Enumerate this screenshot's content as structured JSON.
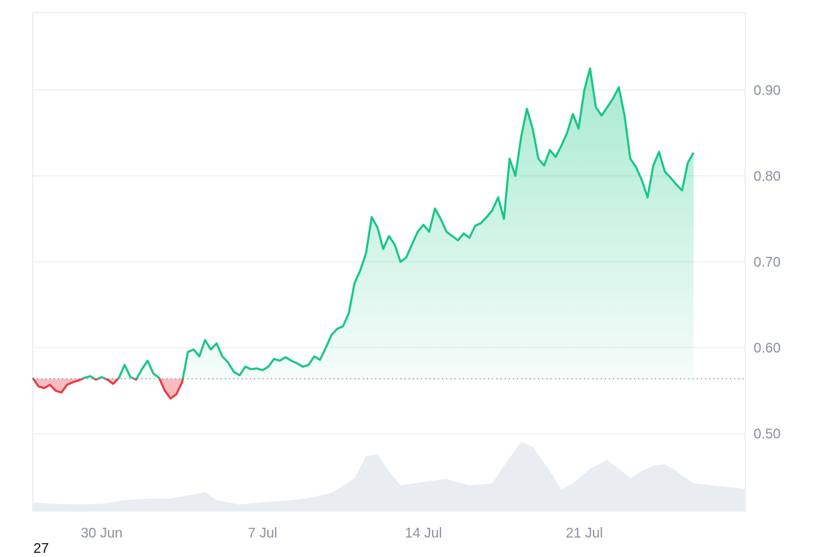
{
  "chart_data": {
    "type": "area",
    "title": "",
    "xlabel": "",
    "ylabel": "",
    "x_range": [
      "2023-06-27",
      "2023-07-28"
    ],
    "ylim": [
      0.41,
      0.99
    ],
    "y_ticks": [
      0.5,
      0.6,
      0.7,
      0.8,
      0.9
    ],
    "y_tick_labels": [
      "0.50",
      "0.60",
      "0.70",
      "0.80",
      "0.90"
    ],
    "x_tick_labels": [
      {
        "date": "2023-06-30",
        "label": "30 Jun"
      },
      {
        "date": "2023-07-07",
        "label": "7 Jul"
      },
      {
        "date": "2023-07-14",
        "label": "14 Jul"
      },
      {
        "date": "2023-07-21",
        "label": "21 Jul"
      }
    ],
    "y_axis_position": "right",
    "grid": true,
    "baseline": 0.564,
    "colors": {
      "up_line": "#16c784",
      "down_line": "#ea3943",
      "volume": "#e9edf1",
      "grid": "#e8ebef",
      "axis_text": "#8a909c",
      "baseline": "#9aa0a8"
    },
    "series": [
      {
        "values": [
          [
            "2023-06-27T00:00",
            0.565
          ],
          [
            "2023-06-27T06:00",
            0.555
          ],
          [
            "2023-06-27T12:00",
            0.553
          ],
          [
            "2023-06-27T18:00",
            0.557
          ],
          [
            "2023-06-28T00:00",
            0.55
          ],
          [
            "2023-06-28T06:00",
            0.548
          ],
          [
            "2023-06-28T12:00",
            0.557
          ],
          [
            "2023-06-28T18:00",
            0.56
          ],
          [
            "2023-06-29T00:00",
            0.562
          ],
          [
            "2023-06-29T06:00",
            0.565
          ],
          [
            "2023-06-29T12:00",
            0.567
          ],
          [
            "2023-06-29T18:00",
            0.563
          ],
          [
            "2023-06-30T00:00",
            0.566
          ],
          [
            "2023-06-30T06:00",
            0.563
          ],
          [
            "2023-06-30T12:00",
            0.558
          ],
          [
            "2023-06-30T18:00",
            0.565
          ],
          [
            "2023-07-01T00:00",
            0.58
          ],
          [
            "2023-07-01T06:00",
            0.566
          ],
          [
            "2023-07-01T12:00",
            0.563
          ],
          [
            "2023-07-01T18:00",
            0.575
          ],
          [
            "2023-07-02T00:00",
            0.585
          ],
          [
            "2023-07-02T06:00",
            0.57
          ],
          [
            "2023-07-02T12:00",
            0.565
          ],
          [
            "2023-07-02T18:00",
            0.55
          ],
          [
            "2023-07-03T00:00",
            0.541
          ],
          [
            "2023-07-03T06:00",
            0.546
          ],
          [
            "2023-07-03T12:00",
            0.56
          ],
          [
            "2023-07-03T18:00",
            0.595
          ],
          [
            "2023-07-04T00:00",
            0.598
          ],
          [
            "2023-07-04T06:00",
            0.59
          ],
          [
            "2023-07-04T12:00",
            0.609
          ],
          [
            "2023-07-04T18:00",
            0.598
          ],
          [
            "2023-07-05T00:00",
            0.605
          ],
          [
            "2023-07-05T06:00",
            0.59
          ],
          [
            "2023-07-05T12:00",
            0.583
          ],
          [
            "2023-07-05T18:00",
            0.572
          ],
          [
            "2023-07-06T00:00",
            0.568
          ],
          [
            "2023-07-06T06:00",
            0.578
          ],
          [
            "2023-07-06T12:00",
            0.575
          ],
          [
            "2023-07-06T18:00",
            0.576
          ],
          [
            "2023-07-07T00:00",
            0.574
          ],
          [
            "2023-07-07T06:00",
            0.578
          ],
          [
            "2023-07-07T12:00",
            0.587
          ],
          [
            "2023-07-07T18:00",
            0.585
          ],
          [
            "2023-07-08T00:00",
            0.589
          ],
          [
            "2023-07-08T06:00",
            0.585
          ],
          [
            "2023-07-08T12:00",
            0.582
          ],
          [
            "2023-07-08T18:00",
            0.578
          ],
          [
            "2023-07-09T00:00",
            0.58
          ],
          [
            "2023-07-09T06:00",
            0.59
          ],
          [
            "2023-07-09T12:00",
            0.586
          ],
          [
            "2023-07-09T18:00",
            0.6
          ],
          [
            "2023-07-10T00:00",
            0.615
          ],
          [
            "2023-07-10T06:00",
            0.622
          ],
          [
            "2023-07-10T12:00",
            0.625
          ],
          [
            "2023-07-10T18:00",
            0.64
          ],
          [
            "2023-07-11T00:00",
            0.675
          ],
          [
            "2023-07-11T06:00",
            0.69
          ],
          [
            "2023-07-11T12:00",
            0.71
          ],
          [
            "2023-07-11T18:00",
            0.752
          ],
          [
            "2023-07-12T00:00",
            0.74
          ],
          [
            "2023-07-12T06:00",
            0.715
          ],
          [
            "2023-07-12T12:00",
            0.73
          ],
          [
            "2023-07-12T18:00",
            0.72
          ],
          [
            "2023-07-13T00:00",
            0.7
          ],
          [
            "2023-07-13T06:00",
            0.705
          ],
          [
            "2023-07-13T12:00",
            0.72
          ],
          [
            "2023-07-13T18:00",
            0.735
          ],
          [
            "2023-07-14T00:00",
            0.743
          ],
          [
            "2023-07-14T06:00",
            0.735
          ],
          [
            "2023-07-14T12:00",
            0.762
          ],
          [
            "2023-07-14T18:00",
            0.75
          ],
          [
            "2023-07-15T00:00",
            0.735
          ],
          [
            "2023-07-15T06:00",
            0.73
          ],
          [
            "2023-07-15T12:00",
            0.725
          ],
          [
            "2023-07-15T18:00",
            0.733
          ],
          [
            "2023-07-16T00:00",
            0.728
          ],
          [
            "2023-07-16T06:00",
            0.742
          ],
          [
            "2023-07-16T12:00",
            0.745
          ],
          [
            "2023-07-16T18:00",
            0.752
          ],
          [
            "2023-07-17T00:00",
            0.76
          ],
          [
            "2023-07-17T06:00",
            0.775
          ],
          [
            "2023-07-17T12:00",
            0.75
          ],
          [
            "2023-07-17T18:00",
            0.82
          ],
          [
            "2023-07-18T00:00",
            0.8
          ],
          [
            "2023-07-18T06:00",
            0.845
          ],
          [
            "2023-07-18T12:00",
            0.878
          ],
          [
            "2023-07-18T18:00",
            0.855
          ],
          [
            "2023-07-19T00:00",
            0.82
          ],
          [
            "2023-07-19T06:00",
            0.812
          ],
          [
            "2023-07-19T12:00",
            0.83
          ],
          [
            "2023-07-19T18:00",
            0.822
          ],
          [
            "2023-07-20T00:00",
            0.835
          ],
          [
            "2023-07-20T06:00",
            0.85
          ],
          [
            "2023-07-20T12:00",
            0.872
          ],
          [
            "2023-07-20T18:00",
            0.855
          ],
          [
            "2023-07-21T00:00",
            0.9
          ],
          [
            "2023-07-21T06:00",
            0.925
          ],
          [
            "2023-07-21T12:00",
            0.88
          ],
          [
            "2023-07-21T18:00",
            0.87
          ],
          [
            "2023-07-22T00:00",
            0.88
          ],
          [
            "2023-07-22T06:00",
            0.89
          ],
          [
            "2023-07-22T12:00",
            0.903
          ],
          [
            "2023-07-22T18:00",
            0.87
          ],
          [
            "2023-07-23T00:00",
            0.82
          ],
          [
            "2023-07-23T06:00",
            0.81
          ],
          [
            "2023-07-23T12:00",
            0.795
          ],
          [
            "2023-07-23T18:00",
            0.775
          ],
          [
            "2023-07-24T00:00",
            0.812
          ],
          [
            "2023-07-24T06:00",
            0.828
          ],
          [
            "2023-07-24T12:00",
            0.805
          ],
          [
            "2023-07-24T18:00",
            0.798
          ],
          [
            "2023-07-25T00:00",
            0.79
          ],
          [
            "2023-07-25T06:00",
            0.783
          ],
          [
            "2023-07-25T12:00",
            0.815
          ],
          [
            "2023-07-25T18:00",
            0.827
          ]
        ]
      }
    ],
    "volume": {
      "unit": "relative",
      "values": [
        [
          "2023-06-27T00:00",
          0.12
        ],
        [
          "2023-06-28T00:00",
          0.1
        ],
        [
          "2023-06-29T00:00",
          0.09
        ],
        [
          "2023-06-30T00:00",
          0.1
        ],
        [
          "2023-07-01T00:00",
          0.15
        ],
        [
          "2023-07-02T00:00",
          0.17
        ],
        [
          "2023-07-03T00:00",
          0.17
        ],
        [
          "2023-07-03T12:00",
          0.2
        ],
        [
          "2023-07-04T12:00",
          0.26
        ],
        [
          "2023-07-05T00:00",
          0.15
        ],
        [
          "2023-07-06T00:00",
          0.09
        ],
        [
          "2023-07-07T00:00",
          0.12
        ],
        [
          "2023-07-08T00:00",
          0.14
        ],
        [
          "2023-07-09T00:00",
          0.18
        ],
        [
          "2023-07-10T00:00",
          0.25
        ],
        [
          "2023-07-11T00:00",
          0.45
        ],
        [
          "2023-07-11T12:00",
          0.75
        ],
        [
          "2023-07-12T00:00",
          0.78
        ],
        [
          "2023-07-12T12:00",
          0.55
        ],
        [
          "2023-07-13T00:00",
          0.35
        ],
        [
          "2023-07-14T00:00",
          0.4
        ],
        [
          "2023-07-15T00:00",
          0.44
        ],
        [
          "2023-07-16T00:00",
          0.35
        ],
        [
          "2023-07-17T00:00",
          0.38
        ],
        [
          "2023-07-17T12:00",
          0.62
        ],
        [
          "2023-07-18T06:00",
          0.95
        ],
        [
          "2023-07-18T18:00",
          0.88
        ],
        [
          "2023-07-19T12:00",
          0.55
        ],
        [
          "2023-07-20T00:00",
          0.3
        ],
        [
          "2023-07-20T12:00",
          0.38
        ],
        [
          "2023-07-21T06:00",
          0.58
        ],
        [
          "2023-07-22T00:00",
          0.7
        ],
        [
          "2023-07-22T12:00",
          0.58
        ],
        [
          "2023-07-23T00:00",
          0.45
        ],
        [
          "2023-07-23T12:00",
          0.55
        ],
        [
          "2023-07-24T00:00",
          0.62
        ],
        [
          "2023-07-24T12:00",
          0.64
        ],
        [
          "2023-07-25T00:00",
          0.55
        ],
        [
          "2023-07-25T18:00",
          0.38
        ]
      ]
    }
  },
  "footer": {
    "corner_label": "27"
  }
}
